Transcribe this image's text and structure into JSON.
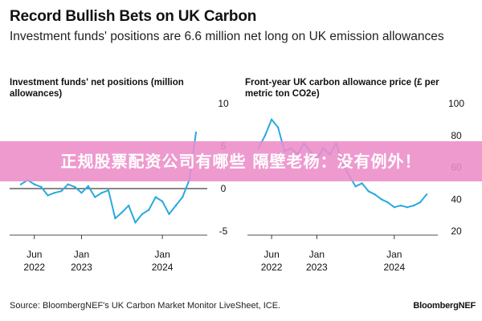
{
  "header": {
    "title": "Record Bullish Bets on UK Carbon",
    "subtitle": "Investment funds' positions are 6.6 million net long on UK emission allowances"
  },
  "chart_data": [
    {
      "type": "line",
      "title": "Investment funds' net positions (million allowances)",
      "color": "#2aa9e0",
      "y_ticks": [
        "10",
        "5",
        "0",
        "-5"
      ],
      "x_ticks": [
        {
          "line1": "Jun",
          "line2": "2022"
        },
        {
          "line1": "Jan",
          "line2": "2023"
        },
        {
          "line1": "Jan",
          "line2": "2024"
        }
      ],
      "ylim": [
        -5,
        10
      ],
      "grid": false,
      "series": [
        {
          "x": [
            "2022-04",
            "2022-05",
            "2022-06",
            "2022-07",
            "2022-08",
            "2022-09",
            "2022-10",
            "2022-11",
            "2022-12",
            "2023-01",
            "2023-02",
            "2023-03",
            "2023-04",
            "2023-05",
            "2023-06",
            "2023-07",
            "2023-08",
            "2023-09",
            "2023-10",
            "2023-11",
            "2023-12",
            "2024-01",
            "2024-02",
            "2024-03",
            "2024-04",
            "2024-05",
            "2024-06"
          ],
          "y": [
            0.5,
            1.0,
            0.5,
            0.2,
            -0.8,
            -0.5,
            -0.3,
            0.5,
            0.2,
            -0.5,
            0.3,
            -1.0,
            -0.5,
            -0.2,
            -3.5,
            -2.8,
            -2.0,
            -4.0,
            -3.0,
            -2.5,
            -1.0,
            -1.5,
            -3.0,
            -2.0,
            -1.0,
            1.0,
            6.6
          ]
        }
      ]
    },
    {
      "type": "line",
      "title": "Front-year UK carbon allowance price (£ per metric ton CO2e)",
      "color": "#2aa9e0",
      "y_ticks": [
        "100",
        "80",
        "60",
        "40",
        "20"
      ],
      "x_ticks": [
        {
          "line1": "Jun",
          "line2": "2022"
        },
        {
          "line1": "Jan",
          "line2": "2023"
        },
        {
          "line1": "Jan",
          "line2": "2024"
        }
      ],
      "ylim": [
        20,
        100
      ],
      "grid": false,
      "series": [
        {
          "x": [
            "2022-04",
            "2022-05",
            "2022-06",
            "2022-07",
            "2022-08",
            "2022-09",
            "2022-10",
            "2022-11",
            "2022-12",
            "2023-01",
            "2023-02",
            "2023-03",
            "2023-04",
            "2023-05",
            "2023-06",
            "2023-07",
            "2023-08",
            "2023-09",
            "2023-10",
            "2023-11",
            "2023-12",
            "2024-01",
            "2024-02",
            "2024-03",
            "2024-04",
            "2024-05",
            "2024-06"
          ],
          "y": [
            72,
            80,
            90,
            85,
            70,
            72,
            68,
            75,
            70,
            65,
            72,
            68,
            75,
            62,
            55,
            48,
            50,
            45,
            43,
            40,
            38,
            35,
            36,
            35,
            36,
            38,
            43
          ]
        }
      ]
    }
  ],
  "banner": {
    "text": "正规股票配资公司有哪些 隔壁老杨：没有例外！"
  },
  "footer": {
    "source": "Source: BloombergNEF's UK Carbon Market Monitor LiveSheet, ICE.",
    "brand": "BloombergNEF"
  }
}
